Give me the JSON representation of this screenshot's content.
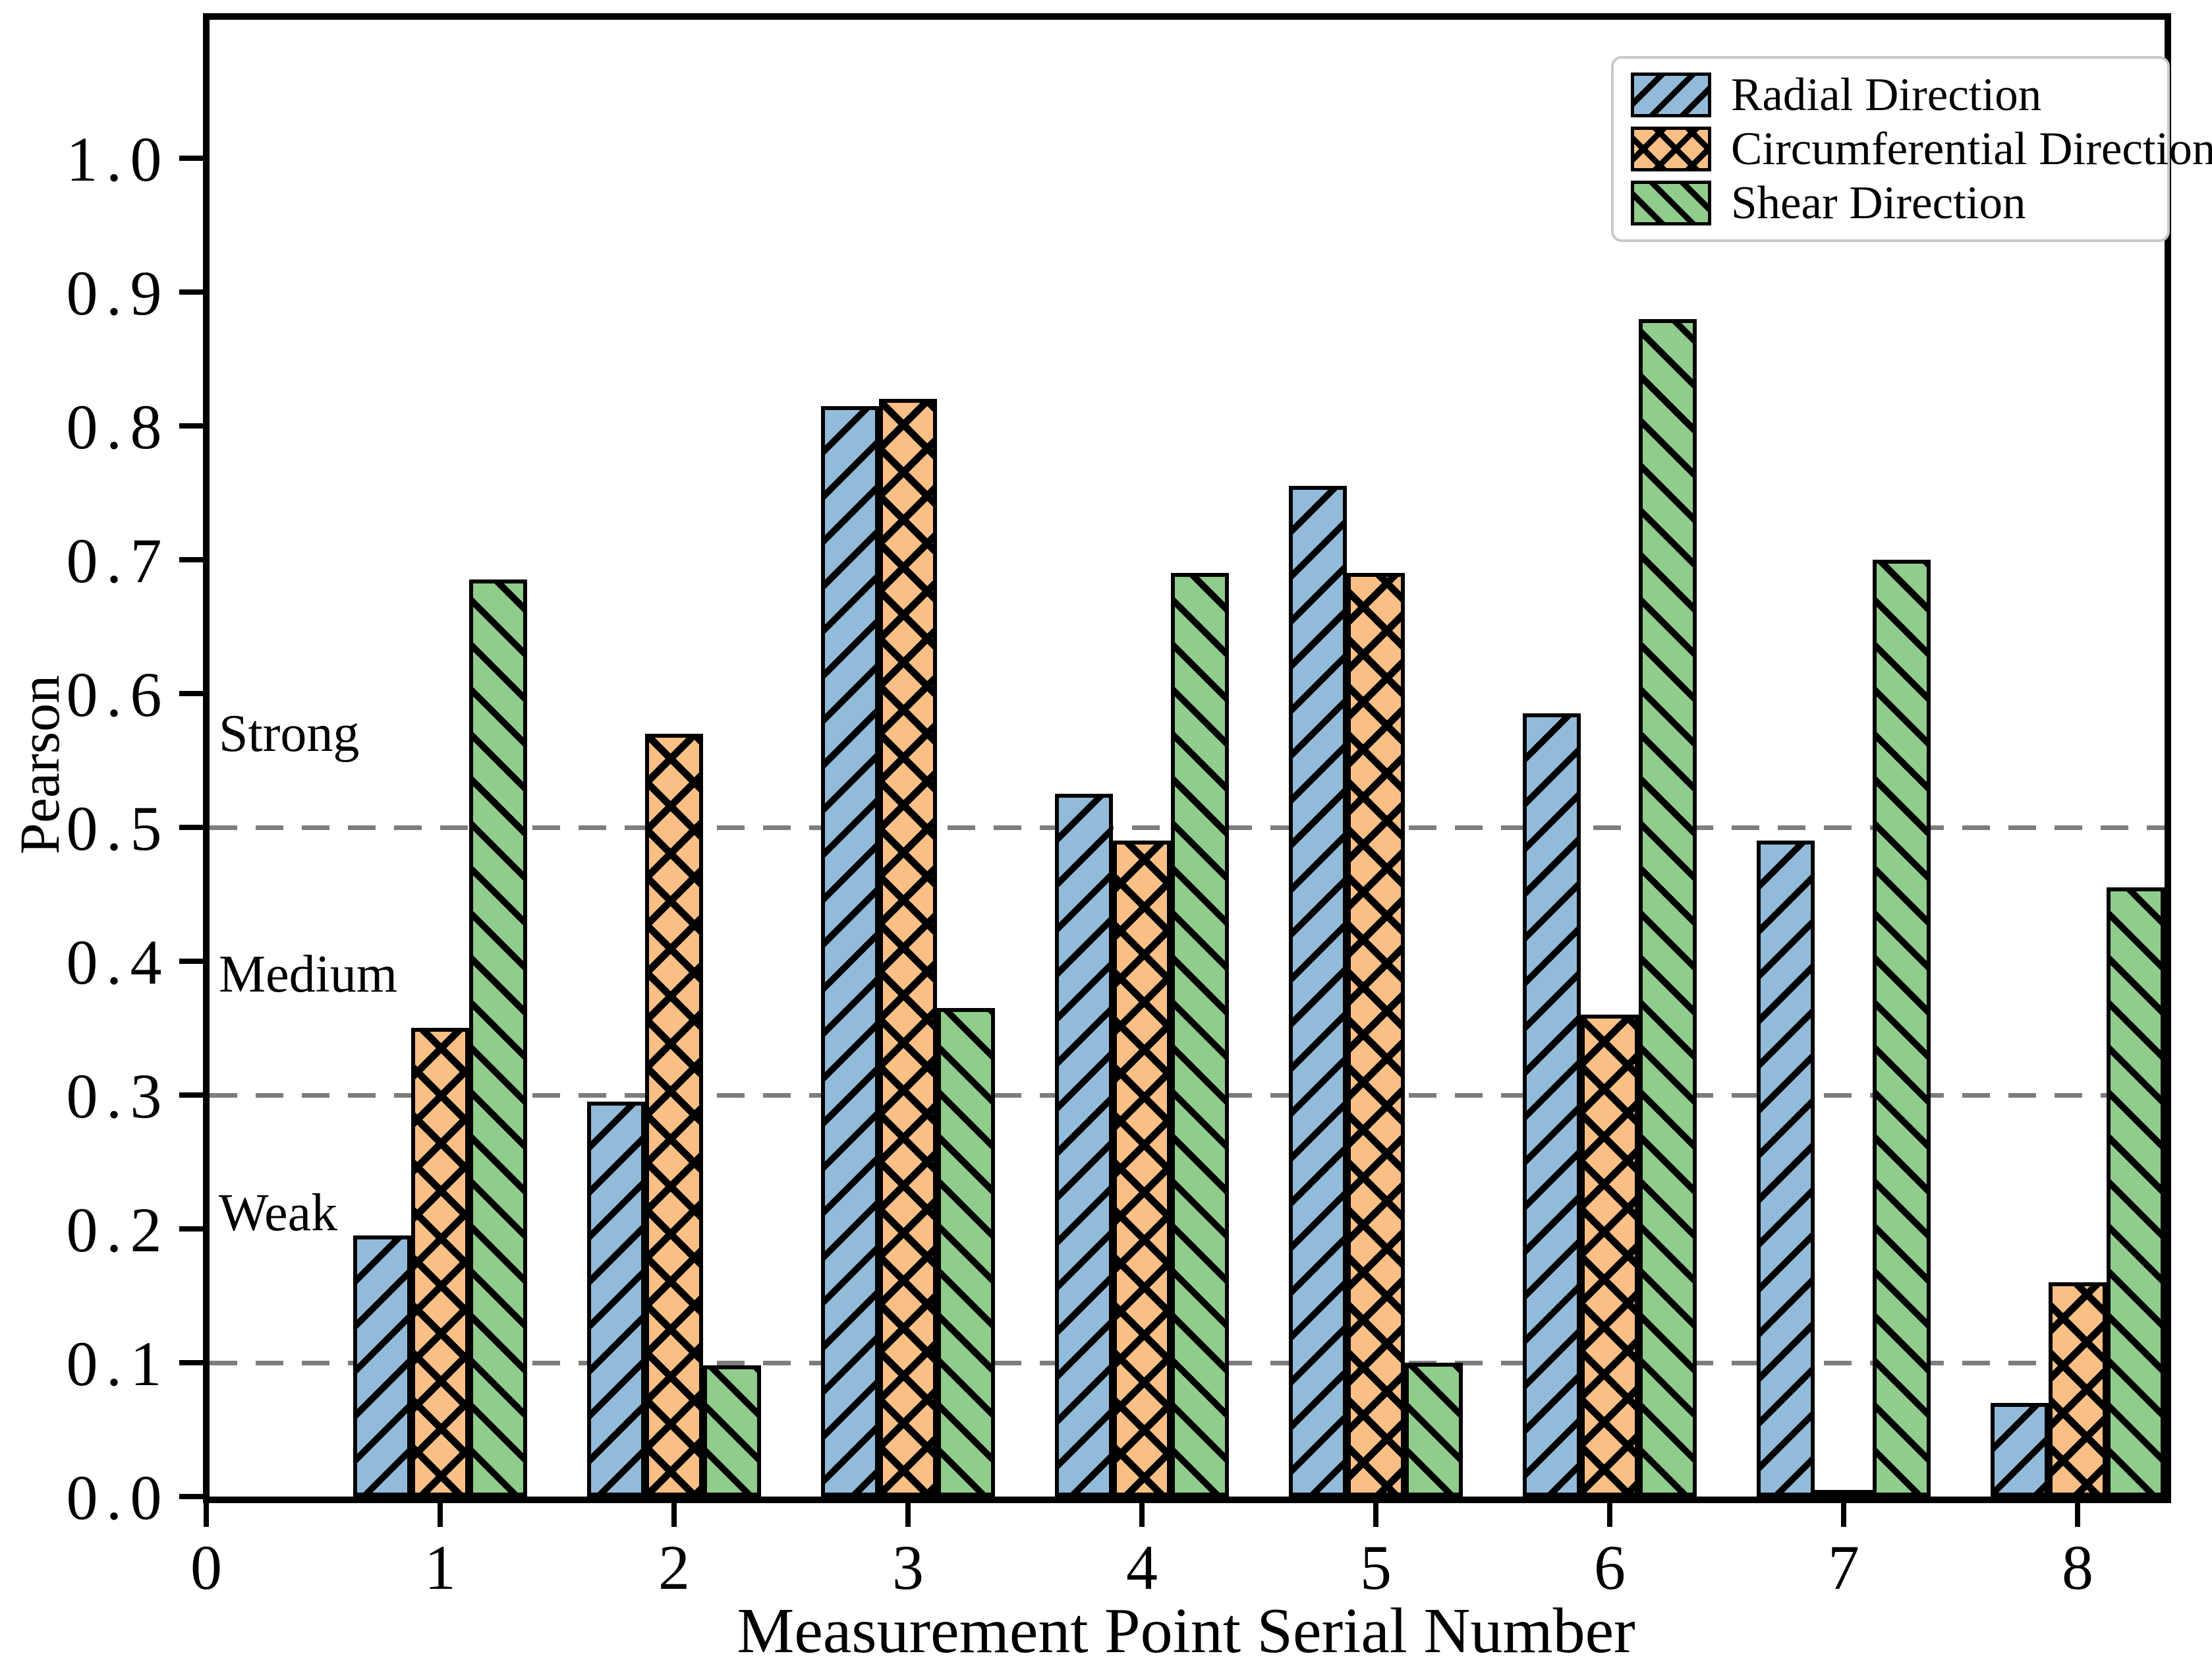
{
  "chart_data": {
    "type": "bar",
    "title": "",
    "xlabel": "Measurement Point Serial Number",
    "ylabel": "Pearson",
    "categories": [
      1,
      2,
      3,
      4,
      5,
      6,
      7,
      8
    ],
    "series": [
      {
        "name": "Radial Direction",
        "color": "#92bbda",
        "hatch": "/",
        "values": [
          0.195,
          0.295,
          0.815,
          0.525,
          0.755,
          0.585,
          0.49,
          0.07
        ]
      },
      {
        "name": "Circumferential Direction",
        "color": "#f9bf85",
        "hatch": "x",
        "values": [
          0.35,
          0.57,
          0.82,
          0.49,
          0.69,
          0.36,
          0.005,
          0.16
        ]
      },
      {
        "name": "Shear Direction",
        "color": "#90cc8b",
        "hatch": "\\",
        "values": [
          0.685,
          0.098,
          0.365,
          0.69,
          0.1,
          0.88,
          0.7,
          0.455
        ]
      }
    ],
    "thresholds": [
      {
        "value": 0.1,
        "label": "Weak",
        "label_y": 0.212
      },
      {
        "value": 0.3,
        "label": "Medium",
        "label_y": 0.39
      },
      {
        "value": 0.5,
        "label": "Strong",
        "label_y": 0.57
      }
    ],
    "x_ticks": [
      "0",
      "1",
      "2",
      "3",
      "4",
      "5",
      "6",
      "7",
      "8"
    ],
    "y_ticks": [
      "0.0",
      "0.1",
      "0.2",
      "0.3",
      "0.4",
      "0.5",
      "0.6",
      "0.7",
      "0.8",
      "0.9",
      "1.0"
    ],
    "ylim": [
      0,
      1.11
    ],
    "xlim": [
      0,
      8.4
    ],
    "grid": "dashed horizontal at 0.1, 0.3, 0.5",
    "legend_position": "upper right",
    "gridline_color": "#7d7d7d",
    "edge_color": "#000000"
  }
}
